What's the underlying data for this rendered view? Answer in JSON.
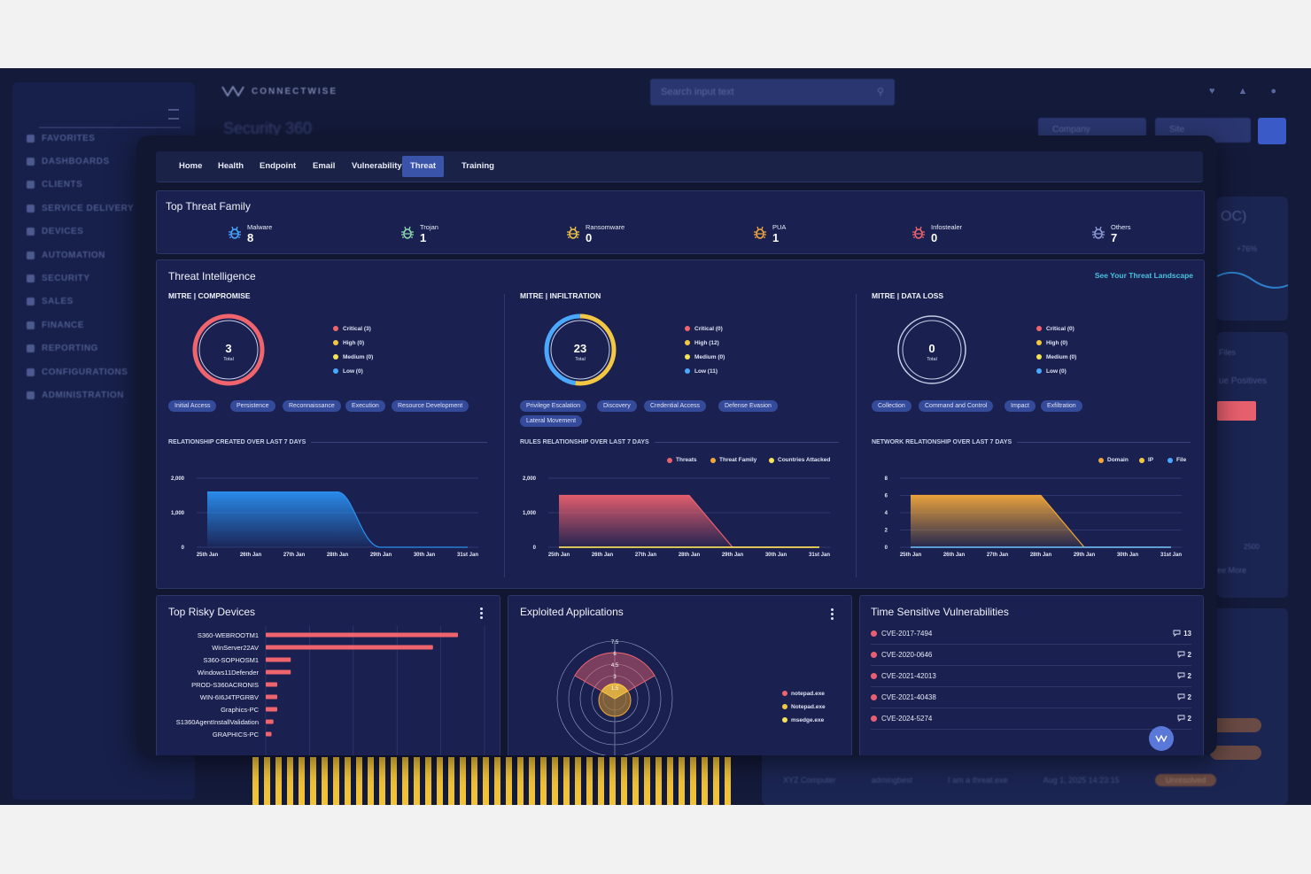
{
  "background": {
    "brand": "CONNECTWISE",
    "search_placeholder": "Search input text",
    "page_title": "Security 360",
    "company_select": "Company",
    "site_select": "Site",
    "nav": [
      "FAVORITES",
      "DASHBOARDS",
      "CLIENTS",
      "SERVICE DELIVERY",
      "DEVICES",
      "AUTOMATION",
      "SECURITY",
      "SALES",
      "FINANCE",
      "REPORTING",
      "CONFIGURATIONS",
      "ADMINISTRATION"
    ],
    "right_peek": {
      "code": "OC)",
      "delta": "+76%",
      "label_a": "Files",
      "label_b": "ue Positives",
      "value": "2500",
      "see_more": "ee More"
    },
    "table_row": {
      "device": "XYZ Computer",
      "user": "admingbest",
      "title": "I am a threat.exe",
      "date": "Aug 1, 2025 14:23:15",
      "status": "Unresolved"
    }
  },
  "tabs": [
    {
      "label": "Home"
    },
    {
      "label": "Health"
    },
    {
      "label": "Endpoint"
    },
    {
      "label": "Email"
    },
    {
      "label": "Vulnerability"
    },
    {
      "label": "Threat"
    },
    {
      "label": "Training"
    }
  ],
  "top_threat_family": {
    "title": "Top Threat Family",
    "items": [
      {
        "label": "Malware",
        "count": "8",
        "color": "#4aa8ff"
      },
      {
        "label": "Trojan",
        "count": "1",
        "color": "#8ad8b0"
      },
      {
        "label": "Ransomware",
        "count": "0",
        "color": "#f3c744"
      },
      {
        "label": "PUA",
        "count": "1",
        "color": "#f3a63a"
      },
      {
        "label": "Infostealer",
        "count": "0",
        "color": "#f0646e"
      },
      {
        "label": "Others",
        "count": "7",
        "color": "#8f9cd8"
      }
    ]
  },
  "threat_intel": {
    "title": "Threat Intelligence",
    "see_link": "See Your Threat Landscape",
    "columns": [
      {
        "heading": "MITRE | COMPROMISE",
        "total": "3",
        "total_label": "Total",
        "legend": [
          "Critical (3)",
          "High (0)",
          "Medium (0)",
          "Low (0)"
        ],
        "tags": [
          "Initial Access",
          "Persistence",
          "Reconnaissance",
          "Execution",
          "Resource Development"
        ],
        "chart_title": "RELATIONSHIP CREATED OVER LAST 7 DAYS",
        "series_legend": []
      },
      {
        "heading": "MITRE | INFILTRATION",
        "total": "23",
        "total_label": "Total",
        "legend": [
          "Critical (0)",
          "High (12)",
          "Medium (0)",
          "Low (11)"
        ],
        "tags": [
          "Privilege Escalation",
          "Discovery",
          "Credential Access",
          "Defense Evasion",
          "Lateral Movement"
        ],
        "chart_title": "RULES RELATIONSHIP OVER LAST 7 DAYS",
        "series_legend": [
          "Threats",
          "Threat Family",
          "Countries Attacked"
        ]
      },
      {
        "heading": "MITRE | DATA LOSS",
        "total": "0",
        "total_label": "Total",
        "legend": [
          "Critical (0)",
          "High (0)",
          "Medium (0)",
          "Low (0)"
        ],
        "tags": [
          "Collection",
          "Command and Control",
          "Impact",
          "Exfiltration"
        ],
        "chart_title": "NETWORK RELATIONSHIP OVER LAST 7 DAYS",
        "series_legend": [
          "Domain",
          "IP",
          "File"
        ]
      }
    ],
    "severity_colors": [
      "#f0646e",
      "#f3c744",
      "#f5e35a",
      "#4aa8ff"
    ]
  },
  "chart_data": [
    {
      "type": "area",
      "title": "RELATIONSHIP CREATED OVER LAST 7 DAYS",
      "categories": [
        "25th Jan",
        "26th Jan",
        "27th Jan",
        "28th Jan",
        "29th Jan",
        "30th Jan",
        "31st Jan"
      ],
      "series": [
        {
          "values": [
            1600,
            1600,
            1600,
            1600,
            0,
            0,
            0
          ],
          "color": "#2a8ff0"
        }
      ],
      "yticks": [
        "0",
        "1,000",
        "2,000"
      ],
      "ylim": [
        0,
        2000
      ]
    },
    {
      "type": "area",
      "title": "RULES RELATIONSHIP OVER LAST 7 DAYS",
      "categories": [
        "25th Jan",
        "26th Jan",
        "27th Jan",
        "28th Jan",
        "29th Jan",
        "30th Jan",
        "31st Jan"
      ],
      "series": [
        {
          "name": "Threats",
          "values": [
            1500,
            1500,
            1500,
            1500,
            0,
            0,
            0
          ],
          "color": "#e8606e"
        },
        {
          "name": "Threat Family",
          "values": [
            0,
            0,
            0,
            0,
            0,
            0,
            0
          ],
          "color": "#f3a63a"
        },
        {
          "name": "Countries Attacked",
          "values": [
            0,
            0,
            0,
            0,
            0,
            0,
            0
          ],
          "color": "#f5e35a"
        }
      ],
      "yticks": [
        "0",
        "1,000",
        "2,000"
      ],
      "ylim": [
        0,
        2000
      ]
    },
    {
      "type": "area",
      "title": "NETWORK RELATIONSHIP OVER LAST 7 DAYS",
      "categories": [
        "25th Jan",
        "26th Jan",
        "27th Jan",
        "28th Jan",
        "29th Jan",
        "30th Jan",
        "31st Jan"
      ],
      "series": [
        {
          "name": "Domain",
          "values": [
            6,
            6,
            6,
            6,
            0,
            0,
            0
          ],
          "color": "#f0a63a"
        },
        {
          "name": "IP",
          "values": [
            0,
            0,
            0,
            0,
            0,
            0,
            0
          ],
          "color": "#f3c744"
        },
        {
          "name": "File",
          "values": [
            0,
            0,
            0,
            0,
            0,
            0,
            0
          ],
          "color": "#4aa8ff"
        }
      ],
      "yticks": [
        "0",
        "2",
        "4",
        "6",
        "8"
      ],
      "ylim": [
        0,
        8
      ]
    },
    {
      "type": "bar",
      "title": "Top Risky Devices",
      "categories": [
        "S360-WEBROOTM1",
        "WinServer22AV",
        "S360-SOPHOSM1",
        "Windows11Defender",
        "PROD-S360ACRONIS",
        "WIN-6I6J4TPGRBV",
        "Graphics-PC",
        "S1360AgentInstallValidation",
        "GRAPHICS-PC"
      ],
      "values": [
        100,
        87,
        13,
        13,
        6,
        6,
        6,
        4,
        3
      ],
      "color": "#f0646e"
    },
    {
      "type": "radar",
      "title": "Exploited Applications",
      "rticks": [
        "1.5",
        "3",
        "4.5",
        "6",
        "7.5"
      ],
      "series": [
        {
          "name": "notepad.exe",
          "color": "#f0646e",
          "values": [
            6,
            6,
            6
          ]
        },
        {
          "name": "Notepad.exe",
          "color": "#f3c744",
          "values": [
            1.5,
            1.5,
            1.5
          ]
        },
        {
          "name": "msedge.exe",
          "color": "#f5e35a",
          "values": [
            0.5,
            0.5,
            0.5
          ]
        }
      ]
    }
  ],
  "risky_devices": {
    "title": "Top Risky Devices"
  },
  "exploited_apps": {
    "title": "Exploited Applications"
  },
  "time_vulns": {
    "title": "Time Sensitive Vulnerabilities",
    "items": [
      {
        "id": "CVE-2017-7494",
        "count": "13"
      },
      {
        "id": "CVE-2020-0646",
        "count": "2"
      },
      {
        "id": "CVE-2021-42013",
        "count": "2"
      },
      {
        "id": "CVE-2021-40438",
        "count": "2"
      },
      {
        "id": "CVE-2024-5274",
        "count": "2"
      }
    ]
  }
}
